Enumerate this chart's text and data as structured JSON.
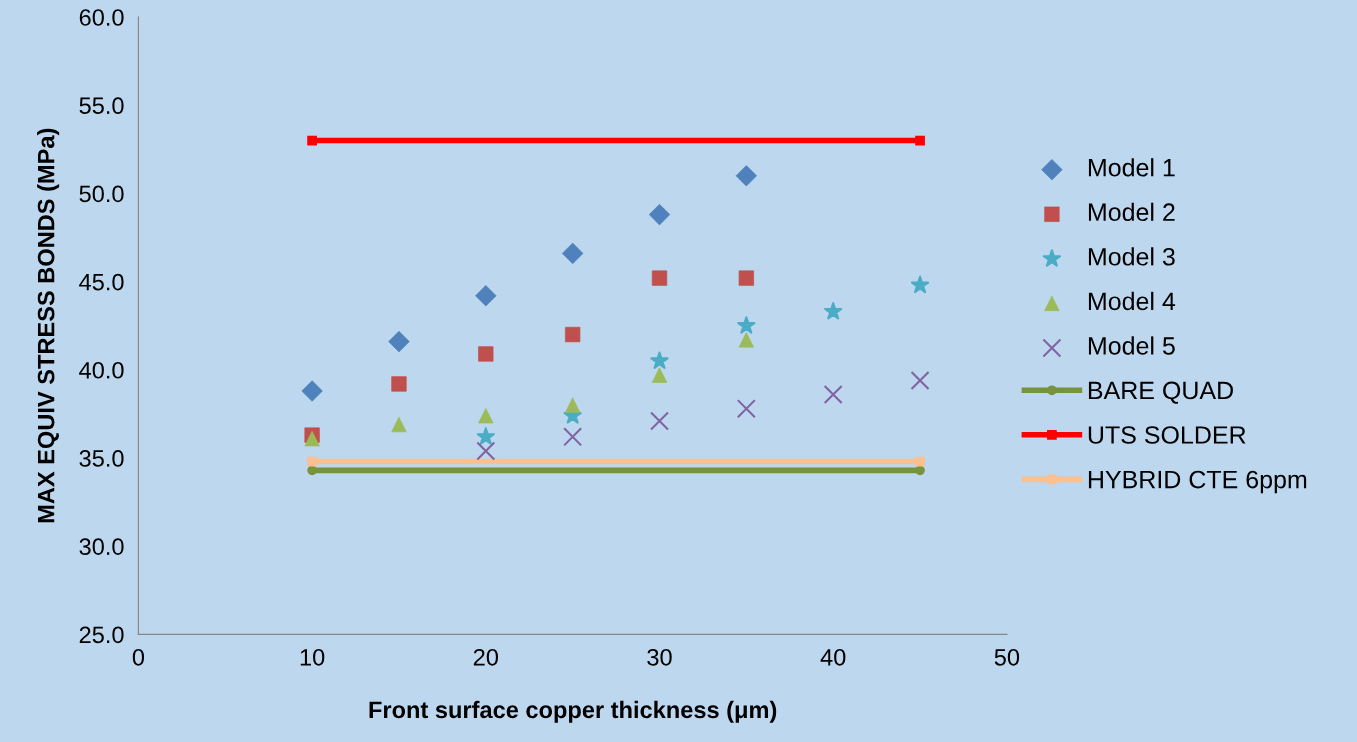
{
  "chart_data": {
    "type": "scatter",
    "xlabel": "Front surface copper thickness (μm)",
    "ylabel": "MAX EQUIV STRESS BONDS (MPa)",
    "xlim": [
      0,
      50
    ],
    "xticks": [
      0,
      10,
      20,
      30,
      40,
      50
    ],
    "ylim": [
      25,
      60
    ],
    "yticks": [
      {
        "value": 25,
        "label": "25.0"
      },
      {
        "value": 30,
        "label": "30.0"
      },
      {
        "value": 35,
        "label": "35.0"
      },
      {
        "value": 40,
        "label": "40.0"
      },
      {
        "value": 45,
        "label": "45.0"
      },
      {
        "value": 50,
        "label": "50.0"
      },
      {
        "value": 55,
        "label": "55.0"
      },
      {
        "value": 60,
        "label": "60.0"
      }
    ],
    "grid": false,
    "legend": "right",
    "series": [
      {
        "name": "Model 1",
        "marker": "diamond",
        "color": "#4f81bd",
        "x": [
          10,
          15,
          20,
          25,
          30,
          35
        ],
        "values": [
          38.8,
          41.6,
          44.2,
          46.6,
          48.8,
          51.0
        ]
      },
      {
        "name": "Model 2",
        "marker": "square",
        "color": "#c0504d",
        "x": [
          10,
          15,
          20,
          25,
          30,
          35
        ],
        "values": [
          36.3,
          39.2,
          40.9,
          42.0,
          45.2,
          45.2
        ]
      },
      {
        "name": "Model 3",
        "marker": "star",
        "color": "#4bacc6",
        "x": [
          20,
          25,
          30,
          35,
          40,
          45
        ],
        "values": [
          36.2,
          37.4,
          40.5,
          42.5,
          43.3,
          44.8
        ]
      },
      {
        "name": "Model 4",
        "marker": "triangle",
        "color": "#9bbb59",
        "x": [
          10,
          15,
          20,
          25,
          30,
          35
        ],
        "values": [
          36.1,
          36.9,
          37.4,
          38.0,
          39.7,
          41.7
        ]
      },
      {
        "name": "Model 5",
        "marker": "cross",
        "color": "#8064a2",
        "x": [
          20,
          25,
          30,
          35,
          40,
          45
        ],
        "values": [
          35.4,
          36.2,
          37.1,
          37.8,
          38.6,
          39.4
        ]
      },
      {
        "name": "BARE QUAD",
        "type": "line",
        "marker": "circle",
        "color": "#77933c",
        "x": [
          10,
          45
        ],
        "values": [
          34.3,
          34.3
        ]
      },
      {
        "name": "UTS SOLDER",
        "type": "line",
        "marker": "square",
        "color": "#ff0000",
        "x": [
          10,
          45
        ],
        "values": [
          53.0,
          53.0
        ]
      },
      {
        "name": "HYBRID CTE 6ppm",
        "type": "line",
        "marker": "square",
        "color": "#fac090",
        "x": [
          10,
          45
        ],
        "values": [
          34.8,
          34.8
        ]
      }
    ]
  }
}
